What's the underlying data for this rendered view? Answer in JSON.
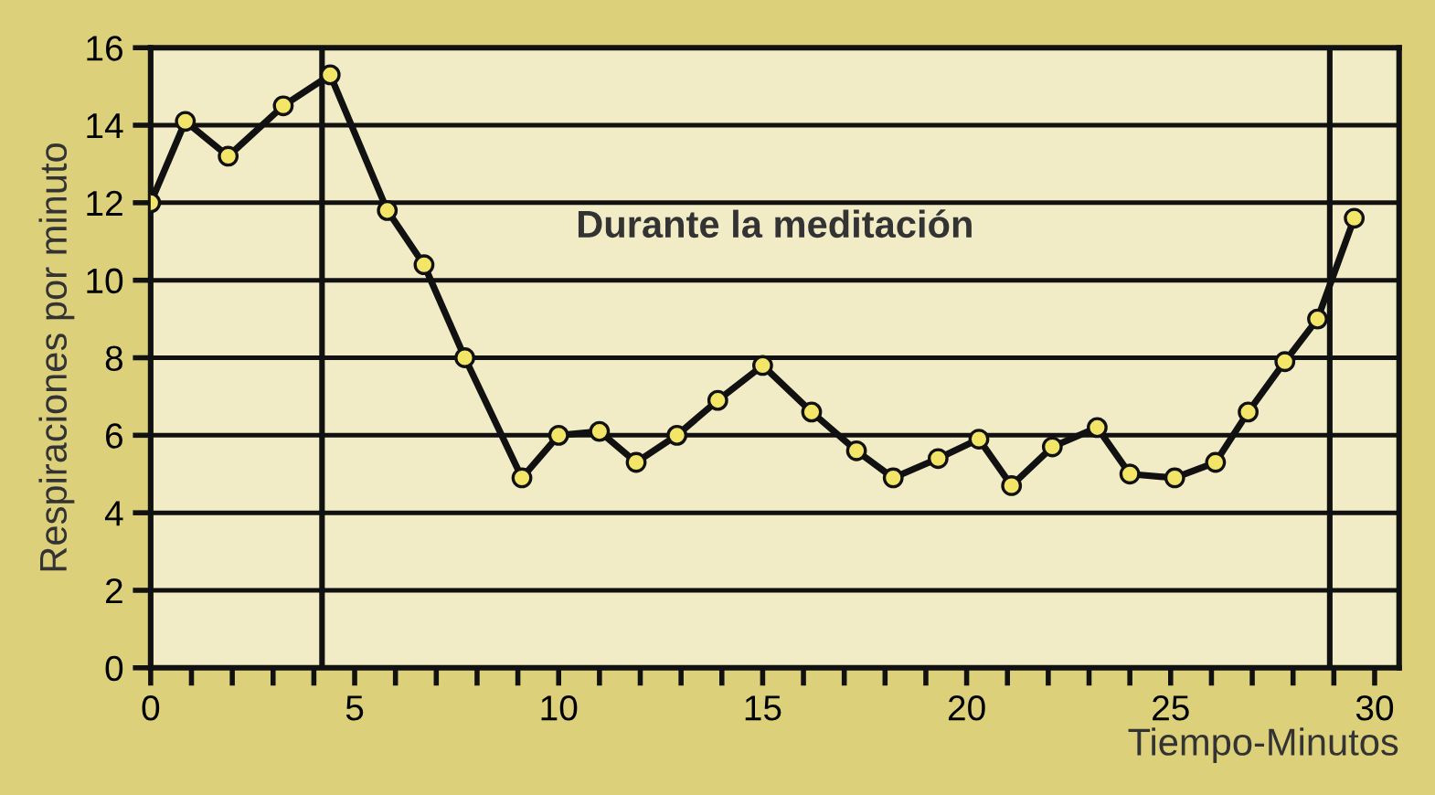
{
  "chart_data": {
    "type": "line",
    "xlabel": "Tiempo-Minutos",
    "ylabel": "Respiraciones por minuto",
    "annotations": [
      "Durante la meditación"
    ],
    "series": [
      {
        "color": "#111111",
        "x": [
          0,
          0.85,
          1.9,
          3.25,
          4.4,
          5.8,
          6.7,
          7.7,
          9.1,
          10.0,
          11.0,
          11.9,
          12.9,
          13.9,
          15.0,
          16.2,
          17.3,
          18.2,
          19.3,
          20.3,
          21.1,
          22.1,
          23.2,
          24.0,
          25.1,
          26.1,
          26.9,
          27.8,
          28.6,
          29.5
        ],
        "values": [
          12,
          14.1,
          13.2,
          14.5,
          15.3,
          11.8,
          10.4,
          8.0,
          4.9,
          6.0,
          6.1,
          5.3,
          6.0,
          6.9,
          7.8,
          6.6,
          5.6,
          4.9,
          5.4,
          5.9,
          4.7,
          5.7,
          6.2,
          5.0,
          4.9,
          5.3,
          6.6,
          7.9,
          9.0,
          11.6
        ]
      }
    ],
    "marker": "circle",
    "line_style": "solid",
    "xlim": [
      0,
      30.6
    ],
    "ylim": [
      0,
      16
    ],
    "xticks": [
      0,
      {
        "value": 1,
        "label": null
      },
      {
        "value": 2,
        "label": null
      },
      {
        "value": 3,
        "label": null
      },
      {
        "value": 4,
        "label": null
      },
      5,
      {
        "value": 6,
        "label": null
      },
      {
        "value": 7,
        "label": null
      },
      {
        "value": 8,
        "label": null
      },
      {
        "value": 9,
        "label": null
      },
      10,
      {
        "value": 11,
        "label": null
      },
      {
        "value": 12,
        "label": null
      },
      {
        "value": 13,
        "label": null
      },
      {
        "value": 14,
        "label": null
      },
      15,
      {
        "value": 16,
        "label": null
      },
      {
        "value": 17,
        "label": null
      },
      {
        "value": 18,
        "label": null
      },
      {
        "value": 19,
        "label": null
      },
      20,
      {
        "value": 21,
        "label": null
      },
      {
        "value": 22,
        "label": null
      },
      {
        "value": 23,
        "label": null
      },
      {
        "value": 24,
        "label": null
      },
      25,
      {
        "value": 26,
        "label": null
      },
      {
        "value": 27,
        "label": null
      },
      {
        "value": 28,
        "label": null
      },
      {
        "value": 29,
        "label": null
      },
      30
    ],
    "yticks": [
      0,
      2,
      4,
      6,
      8,
      10,
      12,
      14,
      16
    ],
    "grid": "y",
    "ref_lines": [
      {
        "axis": "x",
        "value": 4.2,
        "color": "#111111"
      },
      {
        "axis": "x",
        "value": 28.9,
        "color": "#111111"
      }
    ]
  }
}
